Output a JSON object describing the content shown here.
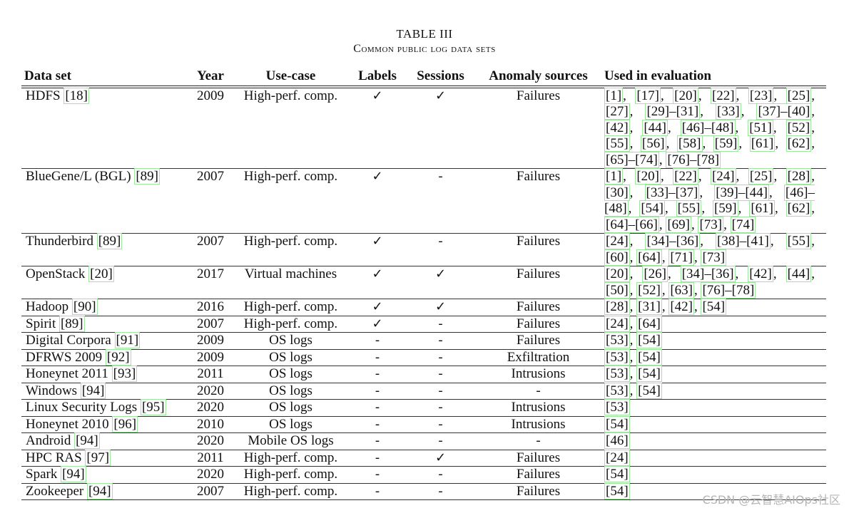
{
  "caption": {
    "title": "TABLE III",
    "subtitle": "Common public log data sets"
  },
  "table": {
    "headers": [
      "Data set",
      "Year",
      "Use-case",
      "Labels",
      "Sessions",
      "Anomaly sources",
      "Used in evaluation"
    ],
    "rows": [
      {
        "name": "HDFS",
        "ref": "[18]",
        "year": "2009",
        "use": "High-perf. comp.",
        "labels": "✓",
        "sessions": "✓",
        "anomaly": "Failures",
        "eval": [
          "[1]",
          "[17]",
          "[20]",
          "[22]",
          "[23]",
          "[25]",
          "[27]",
          "[29]–[31]",
          "[33]",
          "[37]–[40]",
          "[42]",
          "[44]",
          "[46]–[48]",
          "[51]",
          "[52]",
          "[55]",
          "[56]",
          "[58]",
          "[59]",
          "[61]",
          "[62]",
          "[65]–[74]",
          "[76]–[78]"
        ]
      },
      {
        "name": "BlueGene/L (BGL)",
        "ref": "[89]",
        "year": "2007",
        "use": "High-perf. comp.",
        "labels": "✓",
        "sessions": "-",
        "anomaly": "Failures",
        "eval": [
          "[1]",
          "[20]",
          "[22]",
          "[24]",
          "[25]",
          "[28]",
          "[30]",
          "[33]–[37]",
          "[39]–[44]",
          "[46]–[48]",
          "[54]",
          "[55]",
          "[59]",
          "[61]",
          "[62]",
          "[64]–[66]",
          "[69]",
          "[73]",
          "[74]"
        ]
      },
      {
        "name": "Thunderbird",
        "ref": "[89]",
        "year": "2007",
        "use": "High-perf. comp.",
        "labels": "✓",
        "sessions": "-",
        "anomaly": "Failures",
        "eval": [
          "[24]",
          "[34]–[36]",
          "[38]–[41]",
          "[55]",
          "[60]",
          "[64]",
          "[71]",
          "[73]"
        ]
      },
      {
        "name": "OpenStack",
        "ref": "[20]",
        "year": "2017",
        "use": "Virtual machines",
        "labels": "✓",
        "sessions": "✓",
        "anomaly": "Failures",
        "eval": [
          "[20]",
          "[26]",
          "[34]–[36]",
          "[42]",
          "[44]",
          "[50]",
          "[52]",
          "[63]",
          "[76]–[78]"
        ]
      },
      {
        "name": "Hadoop",
        "ref": "[90]",
        "year": "2016",
        "use": "High-perf. comp.",
        "labels": "✓",
        "sessions": "✓",
        "anomaly": "Failures",
        "eval": [
          "[28]",
          "[31]",
          "[42]",
          "[54]"
        ]
      },
      {
        "name": "Spirit",
        "ref": "[89]",
        "year": "2007",
        "use": "High-perf. comp.",
        "labels": "✓",
        "sessions": "-",
        "anomaly": "Failures",
        "eval": [
          "[24]",
          "[64]"
        ]
      },
      {
        "name": "Digital Corpora",
        "ref": "[91]",
        "year": "2009",
        "use": "OS logs",
        "labels": "-",
        "sessions": "-",
        "anomaly": "Failures",
        "eval": [
          "[53]",
          "[54]"
        ]
      },
      {
        "name": "DFRWS 2009",
        "ref": "[92]",
        "year": "2009",
        "use": "OS logs",
        "labels": "-",
        "sessions": "-",
        "anomaly": "Exfiltration",
        "eval": [
          "[53]",
          "[54]"
        ]
      },
      {
        "name": "Honeynet 2011",
        "ref": "[93]",
        "year": "2011",
        "use": "OS logs",
        "labels": "-",
        "sessions": "-",
        "anomaly": "Intrusions",
        "eval": [
          "[53]",
          "[54]"
        ]
      },
      {
        "name": "Windows",
        "ref": "[94]",
        "year": "2020",
        "use": "OS logs",
        "labels": "-",
        "sessions": "-",
        "anomaly": "-",
        "eval": [
          "[53]",
          "[54]"
        ]
      },
      {
        "name": "Linux Security Logs",
        "ref": "[95]",
        "year": "2020",
        "use": "OS logs",
        "labels": "-",
        "sessions": "-",
        "anomaly": "Intrusions",
        "eval": [
          "[53]"
        ]
      },
      {
        "name": "Honeynet 2010",
        "ref": "[96]",
        "year": "2010",
        "use": "OS logs",
        "labels": "-",
        "sessions": "-",
        "anomaly": "Intrusions",
        "eval": [
          "[54]"
        ]
      },
      {
        "name": "Android",
        "ref": "[94]",
        "year": "2020",
        "use": "Mobile OS logs",
        "labels": "-",
        "sessions": "-",
        "anomaly": "-",
        "eval": [
          "[46]"
        ]
      },
      {
        "name": "HPC RAS",
        "ref": "[97]",
        "year": "2011",
        "use": "High-perf. comp.",
        "labels": "-",
        "sessions": "✓",
        "anomaly": "Failures",
        "eval": [
          "[24]"
        ]
      },
      {
        "name": "Spark",
        "ref": "[94]",
        "year": "2020",
        "use": "High-perf. comp.",
        "labels": "-",
        "sessions": "-",
        "anomaly": "Failures",
        "eval": [
          "[54]"
        ]
      },
      {
        "name": "Zookeeper",
        "ref": "[94]",
        "year": "2007",
        "use": "High-perf. comp.",
        "labels": "-",
        "sessions": "-",
        "anomaly": "Failures",
        "eval": [
          "[54]"
        ]
      }
    ]
  },
  "watermark": "CSDN @云智慧AIOps社区"
}
